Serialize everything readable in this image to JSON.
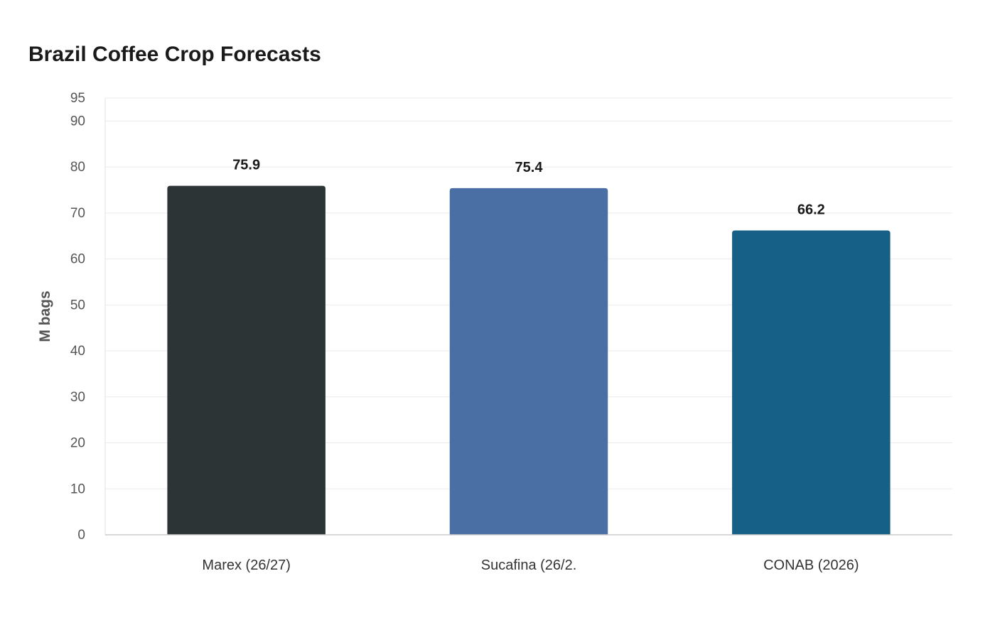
{
  "chart_data": {
    "type": "bar",
    "title": "Brazil Coffee Crop Forecasts",
    "xlabel": "",
    "ylabel": "M bags",
    "categories": [
      "Marex (26/27)",
      "Sucafina (26/2.",
      "CONAB (2026)"
    ],
    "values": [
      75.9,
      75.4,
      66.2
    ],
    "data_labels": [
      "75.9",
      "75.4",
      "66.2"
    ],
    "colors": [
      "#2d3436",
      "#4a6fa5",
      "#166088"
    ],
    "ylim": [
      0,
      95
    ],
    "yticks": [
      0,
      10,
      20,
      30,
      40,
      50,
      60,
      70,
      80,
      90,
      95
    ],
    "grid": true,
    "legend": "none"
  }
}
